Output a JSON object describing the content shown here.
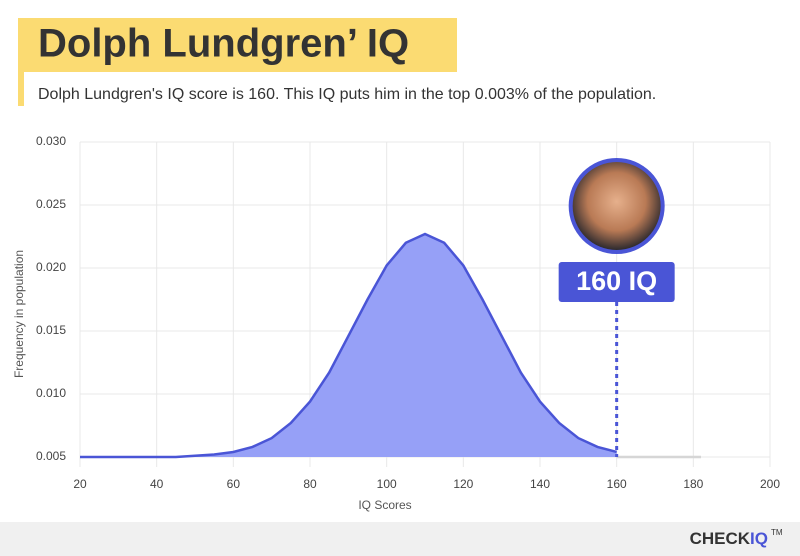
{
  "chart_data": {
    "type": "area",
    "title": "Dolph Lundgren’ IQ",
    "subtitle": "Dolph Lundgren's IQ score is 160. This IQ puts him in the top 0.003% of the population.",
    "xlabel": "IQ Scores",
    "ylabel": "Frequency in population",
    "series": [
      {
        "color": "#4a55d6",
        "x": [
          20,
          25,
          30,
          35,
          40,
          45,
          50,
          55,
          60,
          65,
          70,
          75,
          80,
          85,
          90,
          95,
          100,
          105,
          110,
          115,
          120,
          125,
          130,
          135,
          140,
          145,
          150,
          155,
          160
        ],
        "values": [
          0.005,
          0.005,
          0.005,
          0.005,
          0.005,
          0.005,
          0.0051,
          0.0052,
          0.0054,
          0.0058,
          0.0065,
          0.0077,
          0.0094,
          0.0117,
          0.0146,
          0.0175,
          0.0202,
          0.022,
          0.0227,
          0.022,
          0.0202,
          0.0175,
          0.0146,
          0.0117,
          0.0094,
          0.0077,
          0.0065,
          0.0058,
          0.0054
        ]
      },
      {
        "color": "#d6d6d6",
        "x": [
          160,
          165,
          170,
          175,
          182
        ],
        "values": [
          0.005,
          0.005,
          0.005,
          0.005,
          0.005
        ]
      }
    ],
    "xlim": [
      20,
      200
    ],
    "ylim": [
      0.005,
      0.03
    ],
    "xticks": [
      20,
      40,
      60,
      80,
      100,
      120,
      140,
      160,
      180,
      200
    ],
    "yticks": [
      0.005,
      {
        "value": 0.01,
        "label": "0.010"
      },
      0.015,
      {
        "value": 0.02,
        "label": "0.020"
      },
      0.025,
      {
        "value": 0.03,
        "label": "0.030"
      }
    ],
    "grid": true,
    "marker": {
      "value": 160,
      "label": "160 IQ",
      "color": "#4a55d6"
    },
    "brand": {
      "name": "CHECK",
      "accent": "IQ",
      "mark": "TM"
    }
  }
}
